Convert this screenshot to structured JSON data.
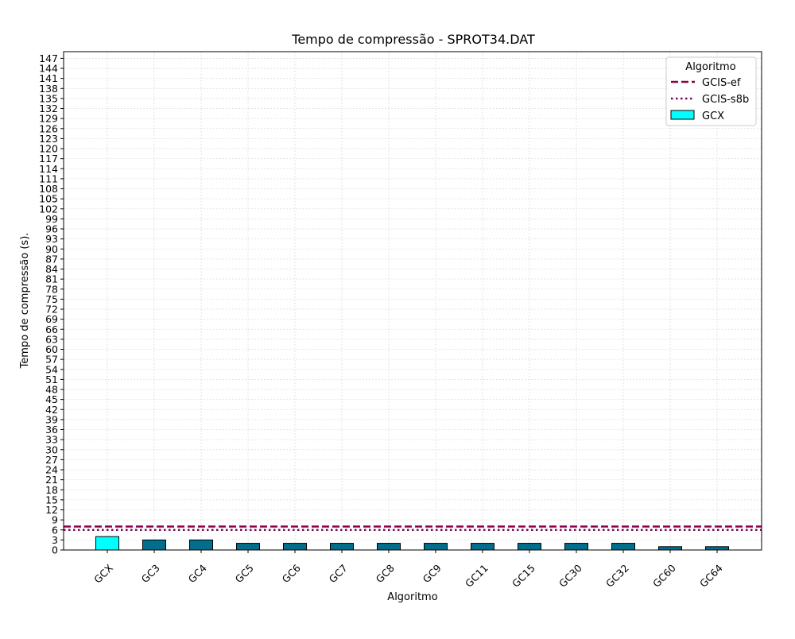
{
  "chart_data": {
    "type": "bar",
    "title": "Tempo de compressão -  SPROT34.DAT",
    "xlabel": "Algoritmo",
    "ylabel": "Tempo de compressão (s).",
    "categories": [
      "GCX",
      "GC3",
      "GC4",
      "GC5",
      "GC6",
      "GC7",
      "GC8",
      "GC9",
      "GC11",
      "GC15",
      "GC30",
      "GC32",
      "GC60",
      "GC64"
    ],
    "values": [
      4,
      3,
      3,
      2,
      2,
      2,
      2,
      2,
      2,
      2,
      2,
      2,
      1,
      1
    ],
    "ylim": [
      0,
      149
    ],
    "yticks": [
      0,
      3,
      6,
      9,
      12,
      15,
      18,
      21,
      24,
      27,
      30,
      33,
      36,
      39,
      42,
      45,
      48,
      51,
      54,
      57,
      60,
      63,
      66,
      69,
      72,
      75,
      78,
      81,
      84,
      87,
      90,
      93,
      96,
      99,
      102,
      105,
      108,
      111,
      114,
      117,
      120,
      123,
      126,
      129,
      132,
      135,
      138,
      141,
      144,
      147
    ],
    "grid": true,
    "legend": {
      "title": "Algoritmo",
      "placement": "top-right",
      "entries": [
        {
          "label": "GCIS-ef",
          "kind": "line",
          "style": "dashed",
          "color": "#8b0048"
        },
        {
          "label": "GCIS-s8b",
          "kind": "line",
          "style": "dotted",
          "color": "#7a0a5a"
        },
        {
          "label": "GCX",
          "kind": "bar",
          "color": "#00ffff"
        }
      ]
    },
    "reference_lines": [
      {
        "name": "GCIS-ef",
        "value": 7,
        "style": "dashed",
        "color": "#8b0048"
      },
      {
        "name": "GCIS-s8b",
        "value": 6,
        "style": "dotted",
        "color": "#7a0a5a"
      }
    ],
    "colors": {
      "highlight": "#00ffff",
      "bar": "#006e8c",
      "edge": "#000000"
    }
  }
}
